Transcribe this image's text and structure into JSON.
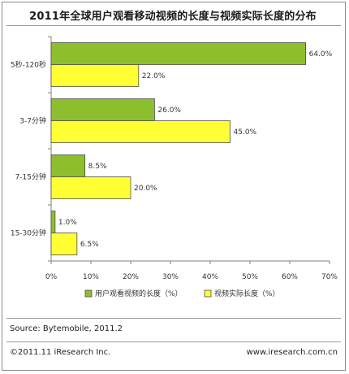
{
  "title": "2011年全球用户观看移动视频的长度与视频实际长度的分布",
  "source": "Source: Bytemobile, 2011.2",
  "copyright": "©2011.11 iResearch Inc.",
  "website": "www.iresearch.com.cn",
  "chart_data": {
    "type": "bar",
    "orientation": "horizontal",
    "categories": [
      "5秒-120秒",
      "3-7分钟",
      "7-15分钟",
      "15-30分钟"
    ],
    "series": [
      {
        "name": "用户观看视频的长度（%）",
        "color": "#8dbe2d",
        "values": [
          64.0,
          26.0,
          8.5,
          1.0
        ],
        "labels": [
          "64.0%",
          "26.0%",
          "8.5%",
          "1.0%"
        ]
      },
      {
        "name": "视频实际长度（%）",
        "color": "#ffff33",
        "values": [
          22.0,
          45.0,
          20.0,
          6.5
        ],
        "labels": [
          "22.0%",
          "45.0%",
          "20.0%",
          "6.5%"
        ]
      }
    ],
    "xlim": [
      0,
      70
    ],
    "xticks": [
      "0%",
      "10%",
      "20%",
      "30%",
      "40%",
      "50%",
      "60%",
      "70%"
    ],
    "legend_position": "bottom",
    "grid": false
  }
}
